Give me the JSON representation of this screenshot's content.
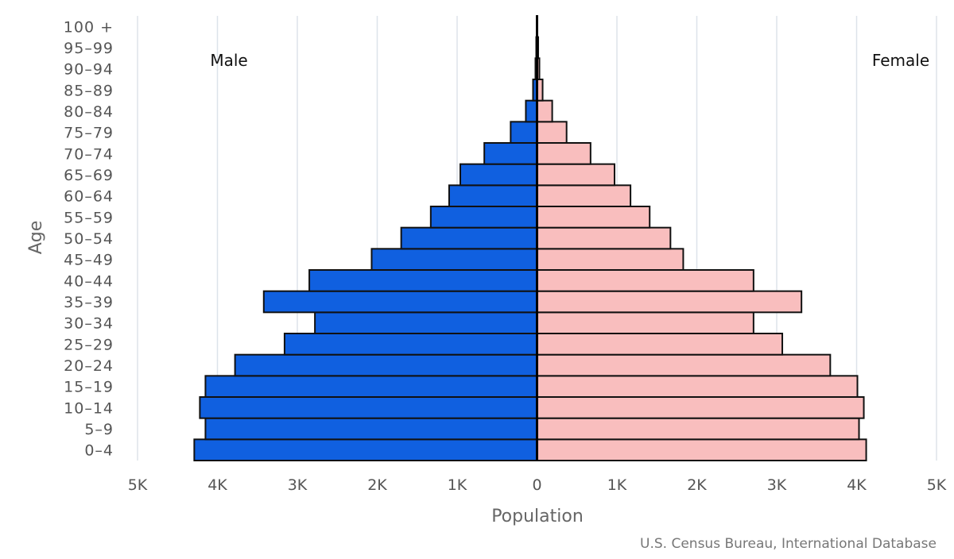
{
  "chart_data": {
    "type": "bar",
    "orientation": "horizontal-pyramid",
    "age_groups": [
      "0-4",
      "5-9",
      "10-14",
      "15-19",
      "20-24",
      "25-29",
      "30-34",
      "35-39",
      "40-44",
      "45-49",
      "50-54",
      "55-59",
      "60-64",
      "65-69",
      "70-74",
      "75-79",
      "80-84",
      "85-89",
      "90-94",
      "95-99",
      "100 +"
    ],
    "series": [
      {
        "name": "Male",
        "color": "#1060E0",
        "values": [
          4290,
          4150,
          4220,
          4150,
          3780,
          3160,
          2780,
          3420,
          2850,
          2070,
          1700,
          1330,
          1100,
          960,
          660,
          330,
          140,
          50,
          20,
          10,
          5
        ]
      },
      {
        "name": "Female",
        "color": "#F9BEBE",
        "values": [
          4120,
          4030,
          4090,
          4010,
          3670,
          3070,
          2710,
          3310,
          2710,
          1830,
          1670,
          1410,
          1170,
          970,
          670,
          370,
          190,
          70,
          30,
          15,
          5
        ]
      }
    ],
    "xlim": [
      -5000,
      5000
    ],
    "xticks": [
      -5000,
      -4000,
      -3000,
      -2000,
      -1000,
      0,
      1000,
      2000,
      3000,
      4000,
      5000
    ],
    "xtick_labels": [
      "5K",
      "4K",
      "3K",
      "2K",
      "1K",
      "0",
      "1K",
      "2K",
      "3K",
      "4K",
      "5K"
    ],
    "xlabel": "Population",
    "ylabel": "Age",
    "grid": true
  },
  "labels": {
    "male": "Male",
    "female": "Female",
    "source": "U.S. Census Bureau, International Database"
  },
  "colors": {
    "grid": "#DDE3EA",
    "bar_stroke": "#111111",
    "center_line": "#000000"
  }
}
